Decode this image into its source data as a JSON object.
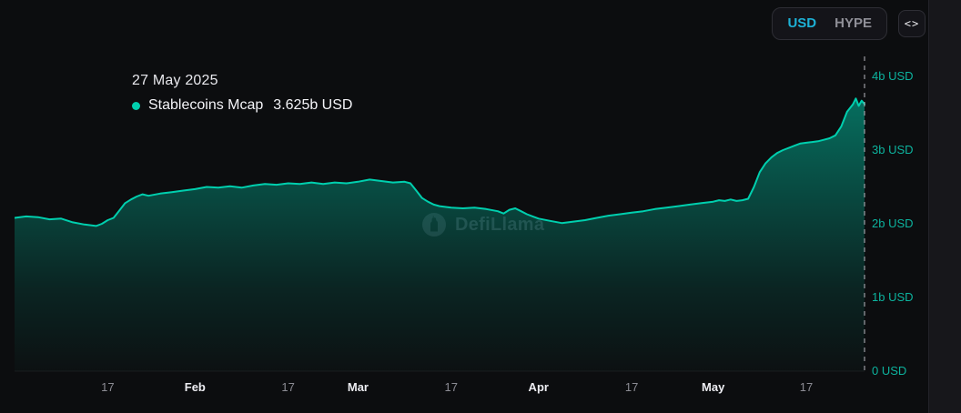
{
  "controls": {
    "currency_options": [
      {
        "label": "USD",
        "active": true
      },
      {
        "label": "HYPE",
        "active": false
      }
    ],
    "embed_icon_glyph": "<>"
  },
  "tooltip": {
    "date": "27 May 2025",
    "series_name": "Stablecoins Mcap",
    "value": "3.625b USD"
  },
  "watermark": {
    "text": "DefiLlama"
  },
  "colors": {
    "accent_teal": "#00cfae",
    "axis_teal": "#0db39e",
    "accent_cyan": "#1db1d6",
    "muted_text": "#8c8c94",
    "emphasis_text": "#ededf2",
    "background": "#0c0d0f"
  },
  "chart_data": {
    "type": "area",
    "title": "Stablecoins Mcap",
    "unit": "USD",
    "ylim": [
      0,
      4
    ],
    "grid": false,
    "y_axis_position": "right",
    "legend_position": "none",
    "crosshair": {
      "day": 146,
      "date": "27 May 2025",
      "value_billions": 3.625
    },
    "y_ticks": [
      {
        "value": 4,
        "label": "4b USD"
      },
      {
        "value": 3,
        "label": "3b USD"
      },
      {
        "value": 2,
        "label": "2b USD"
      },
      {
        "value": 1,
        "label": "1b USD"
      },
      {
        "value": 0,
        "label": "0 USD"
      }
    ],
    "x_ticks": [
      {
        "day": 16,
        "label": "17",
        "emphasis": false
      },
      {
        "day": 31,
        "label": "Feb",
        "emphasis": true
      },
      {
        "day": 47,
        "label": "17",
        "emphasis": false
      },
      {
        "day": 59,
        "label": "Mar",
        "emphasis": true
      },
      {
        "day": 75,
        "label": "17",
        "emphasis": false
      },
      {
        "day": 90,
        "label": "Apr",
        "emphasis": true
      },
      {
        "day": 106,
        "label": "17",
        "emphasis": false
      },
      {
        "day": 120,
        "label": "May",
        "emphasis": true
      },
      {
        "day": 136,
        "label": "17",
        "emphasis": false
      }
    ],
    "x_domain_days": [
      0,
      146
    ],
    "series": [
      {
        "name": "Stablecoins Mcap",
        "color": "#00cfae",
        "points": [
          [
            0,
            2.08
          ],
          [
            2,
            2.1
          ],
          [
            4,
            2.09
          ],
          [
            6,
            2.06
          ],
          [
            8,
            2.07
          ],
          [
            10,
            2.02
          ],
          [
            12,
            1.99
          ],
          [
            14,
            1.97
          ],
          [
            15,
            2.0
          ],
          [
            16,
            2.05
          ],
          [
            17,
            2.08
          ],
          [
            18,
            2.18
          ],
          [
            19,
            2.28
          ],
          [
            20,
            2.33
          ],
          [
            21,
            2.37
          ],
          [
            22,
            2.4
          ],
          [
            23,
            2.38
          ],
          [
            25,
            2.41
          ],
          [
            27,
            2.43
          ],
          [
            29,
            2.45
          ],
          [
            31,
            2.47
          ],
          [
            33,
            2.5
          ],
          [
            35,
            2.49
          ],
          [
            37,
            2.51
          ],
          [
            39,
            2.49
          ],
          [
            41,
            2.52
          ],
          [
            43,
            2.54
          ],
          [
            45,
            2.53
          ],
          [
            47,
            2.55
          ],
          [
            49,
            2.54
          ],
          [
            51,
            2.56
          ],
          [
            53,
            2.54
          ],
          [
            55,
            2.56
          ],
          [
            57,
            2.55
          ],
          [
            59,
            2.57
          ],
          [
            61,
            2.6
          ],
          [
            63,
            2.58
          ],
          [
            65,
            2.56
          ],
          [
            67,
            2.57
          ],
          [
            68,
            2.55
          ],
          [
            69,
            2.45
          ],
          [
            70,
            2.35
          ],
          [
            71,
            2.3
          ],
          [
            72,
            2.26
          ],
          [
            73,
            2.24
          ],
          [
            75,
            2.22
          ],
          [
            77,
            2.21
          ],
          [
            79,
            2.22
          ],
          [
            81,
            2.2
          ],
          [
            83,
            2.17
          ],
          [
            84,
            2.14
          ],
          [
            85,
            2.19
          ],
          [
            86,
            2.21
          ],
          [
            87,
            2.17
          ],
          [
            88,
            2.13
          ],
          [
            89,
            2.1
          ],
          [
            90,
            2.07
          ],
          [
            92,
            2.04
          ],
          [
            94,
            2.01
          ],
          [
            96,
            2.03
          ],
          [
            98,
            2.05
          ],
          [
            100,
            2.08
          ],
          [
            102,
            2.11
          ],
          [
            104,
            2.13
          ],
          [
            106,
            2.15
          ],
          [
            108,
            2.17
          ],
          [
            110,
            2.2
          ],
          [
            112,
            2.22
          ],
          [
            114,
            2.24
          ],
          [
            116,
            2.26
          ],
          [
            118,
            2.28
          ],
          [
            120,
            2.3
          ],
          [
            121,
            2.32
          ],
          [
            122,
            2.31
          ],
          [
            123,
            2.33
          ],
          [
            124,
            2.31
          ],
          [
            125,
            2.32
          ],
          [
            126,
            2.34
          ],
          [
            127,
            2.5
          ],
          [
            128,
            2.7
          ],
          [
            129,
            2.82
          ],
          [
            130,
            2.9
          ],
          [
            131,
            2.96
          ],
          [
            132,
            3.0
          ],
          [
            133,
            3.03
          ],
          [
            134,
            3.06
          ],
          [
            135,
            3.09
          ],
          [
            136,
            3.1
          ],
          [
            137,
            3.11
          ],
          [
            138,
            3.12
          ],
          [
            139,
            3.14
          ],
          [
            140,
            3.16
          ],
          [
            141,
            3.2
          ],
          [
            142,
            3.32
          ],
          [
            143,
            3.52
          ],
          [
            144,
            3.62
          ],
          [
            144.5,
            3.7
          ],
          [
            145,
            3.6
          ],
          [
            145.5,
            3.67
          ],
          [
            146,
            3.625
          ]
        ]
      }
    ]
  }
}
